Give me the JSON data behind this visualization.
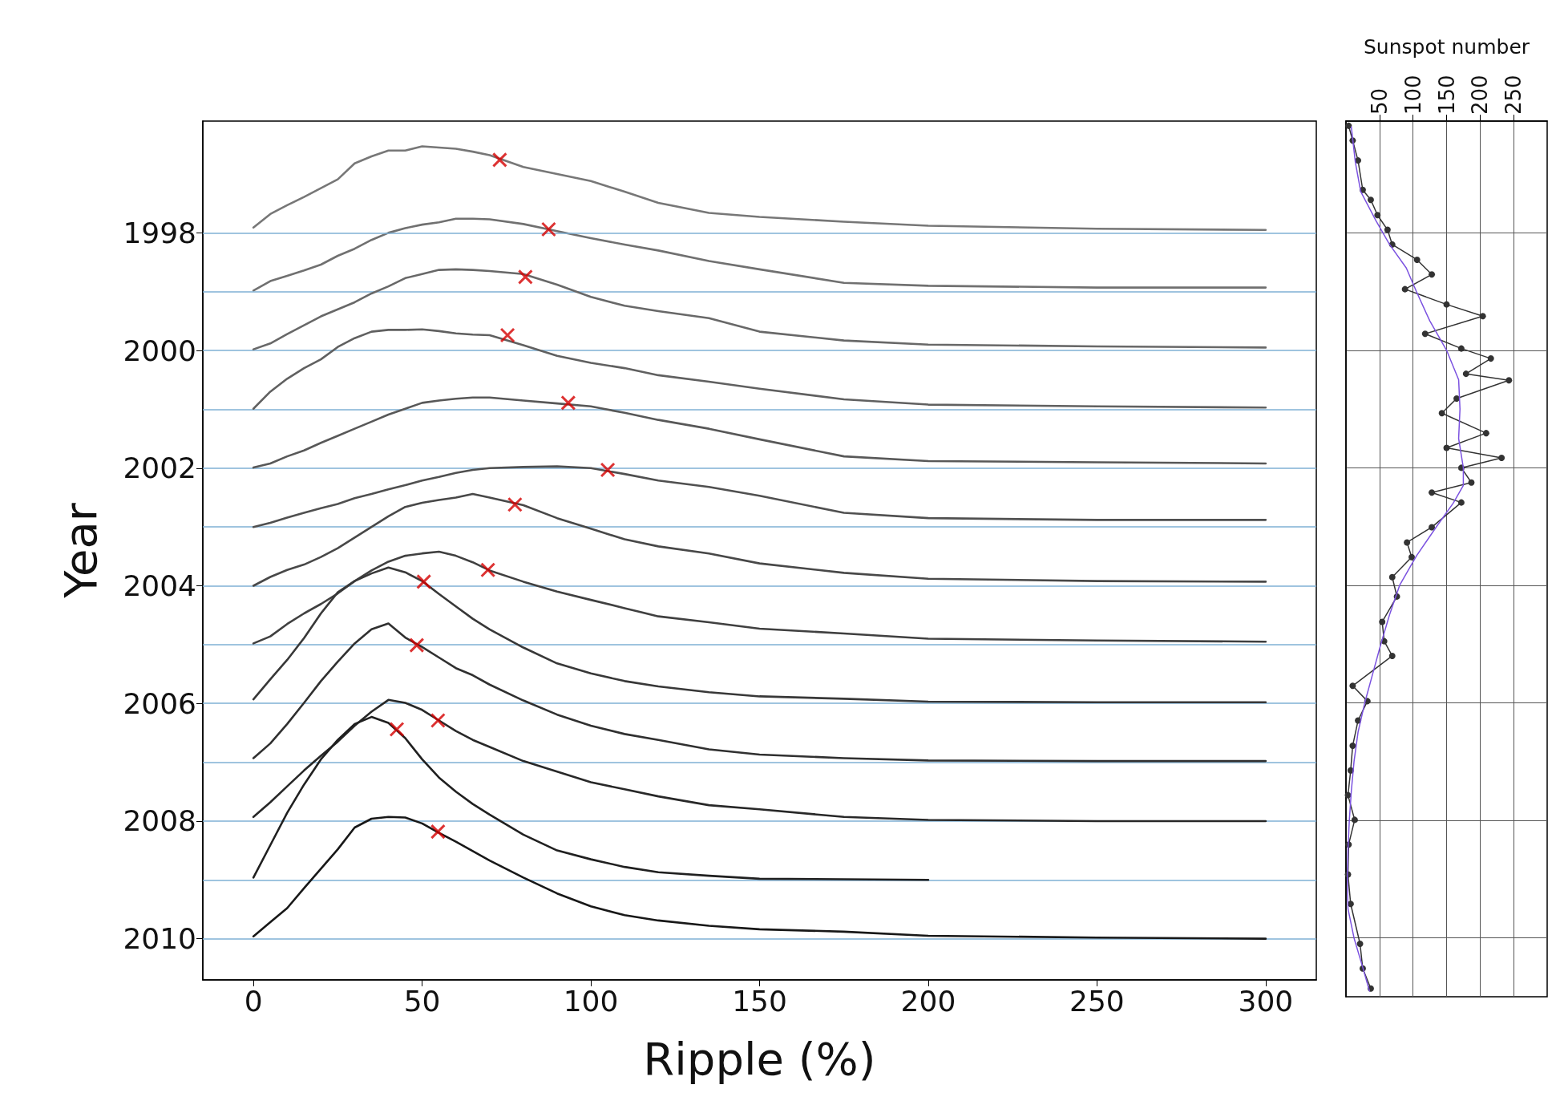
{
  "chart_data": [
    {
      "type": "line",
      "xlabel": "Ripple (%)",
      "ylabel": "Year",
      "xlim": [
        -15,
        315
      ],
      "xticks": [
        0,
        50,
        100,
        150,
        200,
        250,
        300
      ],
      "ylim": [
        2010.7,
        1996.1
      ],
      "yticks": [
        1998,
        2000,
        2002,
        2004,
        2006,
        2008,
        2010
      ],
      "grid": false,
      "marker": "none",
      "line_style": "solid",
      "x": [
        0,
        5,
        10,
        15,
        20,
        25,
        30,
        35,
        40,
        45,
        50,
        55,
        60,
        65,
        70,
        80,
        90,
        100,
        110,
        120,
        135,
        150,
        175,
        200,
        250,
        300
      ],
      "ref_lines": [
        {
          "axis": "y",
          "value": 1998,
          "color": "#7fb0d4"
        },
        {
          "axis": "y",
          "value": 1999,
          "color": "#7fb0d4"
        },
        {
          "axis": "y",
          "value": 2000,
          "color": "#7fb0d4"
        },
        {
          "axis": "y",
          "value": 2001,
          "color": "#7fb0d4"
        },
        {
          "axis": "y",
          "value": 2002,
          "color": "#7fb0d4"
        },
        {
          "axis": "y",
          "value": 2003,
          "color": "#7fb0d4"
        },
        {
          "axis": "y",
          "value": 2004,
          "color": "#7fb0d4"
        },
        {
          "axis": "y",
          "value": 2005,
          "color": "#7fb0d4"
        },
        {
          "axis": "y",
          "value": 2006,
          "color": "#7fb0d4"
        },
        {
          "axis": "y",
          "value": 2007,
          "color": "#7fb0d4"
        },
        {
          "axis": "y",
          "value": 2008,
          "color": "#7fb0d4"
        },
        {
          "axis": "y",
          "value": 2009,
          "color": "#7fb0d4"
        },
        {
          "axis": "y",
          "value": 2010,
          "color": "#7fb0d4"
        }
      ],
      "series": [
        {
          "color": "#777777",
          "values": [
            1997.91,
            1997.68,
            1997.53,
            1997.39,
            1997.24,
            1997.09,
            1996.82,
            1996.7,
            1996.6,
            1996.6,
            1996.53,
            1996.55,
            1996.57,
            1996.62,
            1996.68,
            1996.88,
            1997.0,
            1997.12,
            1997.3,
            1997.49,
            1997.66,
            1997.73,
            1997.81,
            1997.88,
            1997.93,
            1997.95
          ]
        },
        {
          "color": "#707070",
          "values": [
            1998.98,
            1998.82,
            1998.73,
            1998.64,
            1998.54,
            1998.39,
            1998.27,
            1998.12,
            1998.0,
            1997.92,
            1997.86,
            1997.82,
            1997.76,
            1997.76,
            1997.77,
            1997.85,
            1997.97,
            1998.09,
            1998.2,
            1998.3,
            1998.48,
            1998.62,
            1998.85,
            1998.9,
            1998.93,
            1998.93
          ]
        },
        {
          "color": "#686868",
          "values": [
            1999.98,
            1999.88,
            1999.72,
            1999.57,
            1999.42,
            1999.3,
            1999.18,
            1999.03,
            1998.91,
            1998.77,
            1998.7,
            1998.63,
            1998.62,
            1998.63,
            1998.65,
            1998.7,
            1998.88,
            1999.09,
            1999.24,
            1999.33,
            1999.45,
            1999.68,
            1999.83,
            1999.9,
            1999.93,
            1999.95
          ]
        },
        {
          "color": "#606060",
          "values": [
            2000.99,
            2000.7,
            2000.48,
            2000.3,
            2000.15,
            1999.94,
            1999.79,
            1999.68,
            1999.65,
            1999.65,
            1999.64,
            1999.67,
            1999.71,
            1999.73,
            1999.74,
            1999.91,
            2000.09,
            2000.21,
            2000.3,
            2000.42,
            2000.53,
            2000.65,
            2000.83,
            2000.92,
            2000.95,
            2000.97
          ]
        },
        {
          "color": "#585858",
          "values": [
            2001.99,
            2001.92,
            2001.8,
            2001.7,
            2001.57,
            2001.45,
            2001.33,
            2001.21,
            2001.09,
            2000.99,
            2000.89,
            2000.85,
            2000.82,
            2000.8,
            2000.8,
            2000.85,
            2000.9,
            2000.95,
            2001.06,
            2001.18,
            2001.33,
            2001.51,
            2001.8,
            2001.88,
            2001.9,
            2001.92
          ]
        },
        {
          "color": "#505050",
          "values": [
            2003.0,
            2002.93,
            2002.84,
            2002.76,
            2002.68,
            2002.61,
            2002.51,
            2002.44,
            2002.36,
            2002.29,
            2002.21,
            2002.15,
            2002.08,
            2002.03,
            2002.0,
            2001.98,
            2001.97,
            2002.0,
            2002.1,
            2002.21,
            2002.32,
            2002.47,
            2002.76,
            2002.85,
            2002.88,
            2002.88
          ]
        },
        {
          "color": "#484848",
          "values": [
            2004.0,
            2003.85,
            2003.73,
            2003.64,
            2003.51,
            2003.36,
            2003.18,
            2003.0,
            2002.82,
            2002.66,
            2002.59,
            2002.54,
            2002.5,
            2002.44,
            2002.5,
            2002.63,
            2002.85,
            2003.03,
            2003.21,
            2003.33,
            2003.45,
            2003.62,
            2003.78,
            2003.88,
            2003.92,
            2003.93
          ]
        },
        {
          "color": "#404040",
          "values": [
            2004.98,
            2004.86,
            2004.65,
            2004.47,
            2004.31,
            2004.13,
            2003.92,
            2003.74,
            2003.59,
            2003.49,
            2003.45,
            2003.42,
            2003.49,
            2003.6,
            2003.74,
            2003.93,
            2004.1,
            2004.24,
            2004.38,
            2004.52,
            2004.62,
            2004.73,
            2004.81,
            2004.9,
            2004.93,
            2004.95
          ]
        },
        {
          "color": "#383838",
          "values": [
            2005.93,
            2005.59,
            2005.26,
            2004.89,
            2004.47,
            2004.11,
            2003.92,
            2003.79,
            2003.69,
            2003.77,
            2003.92,
            2004.14,
            2004.35,
            2004.56,
            2004.74,
            2005.05,
            2005.32,
            2005.49,
            2005.62,
            2005.71,
            2005.81,
            2005.88,
            2005.92,
            2005.97,
            2005.98,
            2005.98
          ]
        },
        {
          "color": "#303030",
          "values": [
            2006.93,
            2006.68,
            2006.35,
            2005.99,
            2005.62,
            2005.29,
            2004.98,
            2004.74,
            2004.64,
            2004.88,
            2005.04,
            2005.22,
            2005.4,
            2005.52,
            2005.68,
            2005.95,
            2006.19,
            2006.38,
            2006.52,
            2006.62,
            2006.78,
            2006.87,
            2006.93,
            2006.97,
            2006.98,
            2006.98
          ]
        },
        {
          "color": "#282828",
          "values": [
            2007.93,
            2007.68,
            2007.41,
            2007.14,
            2006.89,
            2006.65,
            2006.38,
            2006.14,
            2005.94,
            2005.99,
            2006.11,
            2006.29,
            2006.47,
            2006.62,
            2006.74,
            2006.98,
            2007.16,
            2007.34,
            2007.46,
            2007.58,
            2007.73,
            2007.8,
            2007.93,
            2007.98,
            2008.0,
            2008.0
          ]
        },
        {
          "color": "#202020",
          "values": [
            2008.96,
            2008.41,
            2007.86,
            2007.38,
            2006.95,
            2006.62,
            2006.35,
            2006.23,
            2006.33,
            2006.59,
            2006.95,
            2007.26,
            2007.5,
            2007.71,
            2007.89,
            2008.23,
            2008.5,
            2008.65,
            2008.78,
            2008.87,
            2008.93,
            2008.98,
            2008.99,
            2009.0,
            null,
            null
          ]
        },
        {
          "color": "#181818",
          "values": [
            2009.96,
            2009.72,
            2009.48,
            2009.14,
            2008.81,
            2008.48,
            2008.11,
            2007.96,
            2007.93,
            2007.94,
            2008.04,
            2008.2,
            2008.35,
            2008.51,
            2008.67,
            2008.96,
            2009.23,
            2009.45,
            2009.6,
            2009.69,
            2009.78,
            2009.84,
            2009.88,
            2009.95,
            2009.98,
            2010.0
          ]
        },
        {
          "type": "scatter",
          "marker": "cross",
          "color": "#d40000",
          "x": [
            73,
            87.5,
            80.6,
            75.3,
            93.3,
            105,
            77.5,
            69.5,
            50.5,
            48.4,
            54.7,
            42.5,
            54.7
          ],
          "values": [
            1996.76,
            1997.94,
            1998.75,
            1999.74,
            2000.89,
            2002.03,
            2002.62,
            2003.73,
            2003.93,
            2005.01,
            2006.29,
            2006.44,
            2008.18
          ]
        }
      ]
    },
    {
      "type": "line",
      "xlabel": "Sunspot number",
      "xlim": [
        0,
        300
      ],
      "xticks": [
        50,
        100,
        150,
        200,
        250
      ],
      "ylim": [
        2011.0,
        1996.1
      ],
      "yticks": [
        1998,
        2000,
        2002,
        2004,
        2006,
        2008,
        2010
      ],
      "tick_labels": "x",
      "grid": true,
      "line_style": "solid",
      "series": [
        {
          "color": "#333333",
          "marker": "circle",
          "x": [
            4,
            10,
            18,
            25,
            37,
            47,
            62,
            69,
            106,
            128,
            88,
            150,
            204,
            118,
            172,
            216,
            179,
            243,
            165,
            143,
            209,
            150,
            232,
            172,
            187,
            128,
            172,
            128,
            91,
            98,
            69,
            76,
            54,
            57,
            69,
            10,
            32,
            18,
            10,
            7,
            3,
            13,
            4,
            3,
            7,
            21,
            25,
            37
          ],
          "values": [
            1996.18,
            1996.43,
            1996.77,
            1997.27,
            1997.44,
            1997.7,
            1997.95,
            1998.2,
            1998.46,
            1998.71,
            1998.96,
            1999.22,
            1999.42,
            1999.72,
            1999.97,
            2000.14,
            2000.4,
            2000.51,
            2000.82,
            2001.07,
            2001.41,
            2001.66,
            2001.83,
            2002.0,
            2002.25,
            2002.42,
            2002.59,
            2003.01,
            2003.27,
            2003.52,
            2003.86,
            2004.19,
            2004.62,
            2004.95,
            2005.2,
            2005.71,
            2005.97,
            2006.3,
            2006.73,
            2007.15,
            2007.57,
            2007.99,
            2008.41,
            2008.92,
            2009.42,
            2010.1,
            2010.52,
            2010.86
          ]
        },
        {
          "color": "#7b52e0",
          "marker": "none",
          "x": [
            8,
            14,
            22,
            45,
            65,
            90,
            105,
            125,
            150,
            168,
            170,
            168,
            175,
            175,
            160,
            135,
            105,
            80,
            65,
            52,
            40,
            28,
            18,
            12,
            8,
            5,
            3,
            2,
            3,
            12,
            25,
            35
          ],
          "values": [
            1996.2,
            1996.8,
            1997.3,
            1997.8,
            1998.2,
            1998.6,
            1999.0,
            1999.5,
            2000.0,
            2000.5,
            2001.0,
            2001.5,
            2002.0,
            2002.3,
            2002.6,
            2003.0,
            2003.5,
            2004.0,
            2004.5,
            2005.0,
            2005.5,
            2006.0,
            2006.5,
            2007.0,
            2007.5,
            2008.0,
            2008.5,
            2009.0,
            2009.5,
            2010.0,
            2010.5,
            2010.9
          ]
        }
      ]
    }
  ]
}
